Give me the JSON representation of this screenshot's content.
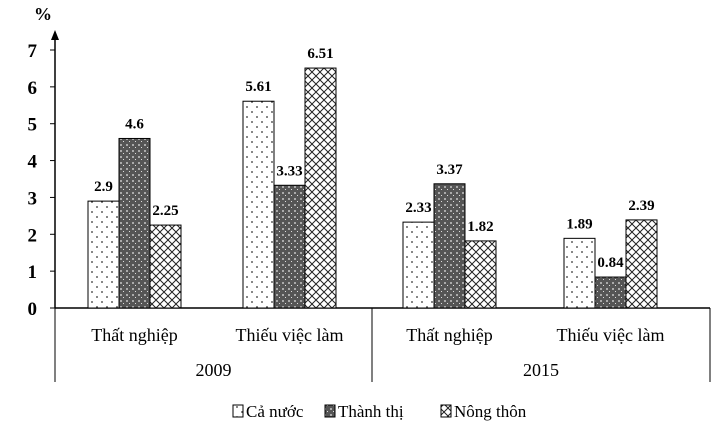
{
  "chart_data": {
    "type": "bar",
    "title": "",
    "ylabel": "%",
    "xlabel": "",
    "ylim": [
      0,
      7
    ],
    "yticks": [
      "0",
      "1",
      "2",
      "3",
      "4",
      "5",
      "6",
      "7"
    ],
    "categories": [
      "Thất nghiệp",
      "Thiếu việc làm",
      "Thất nghiệp",
      "Thiếu việc làm"
    ],
    "groups": [
      {
        "label": "2009",
        "categories": [
          0,
          1
        ]
      },
      {
        "label": "2015",
        "categories": [
          2,
          3
        ]
      }
    ],
    "series": [
      {
        "name": "Cả nước",
        "pattern": "dots",
        "values": [
          2.9,
          5.61,
          2.33,
          1.89
        ],
        "labels": [
          "2.9",
          "5.61",
          "2.33",
          "1.89"
        ]
      },
      {
        "name": "Thành thị",
        "pattern": "dark-grid",
        "values": [
          4.6,
          3.33,
          3.37,
          0.84
        ],
        "labels": [
          "4.6",
          "3.33",
          "3.37",
          "0.84"
        ]
      },
      {
        "name": "Nông thôn",
        "pattern": "crosshatch",
        "values": [
          2.25,
          6.51,
          1.82,
          2.39
        ],
        "labels": [
          "2.25",
          "6.51",
          "1.82",
          "2.39"
        ]
      }
    ],
    "legend_position": "bottom",
    "grid": false
  }
}
